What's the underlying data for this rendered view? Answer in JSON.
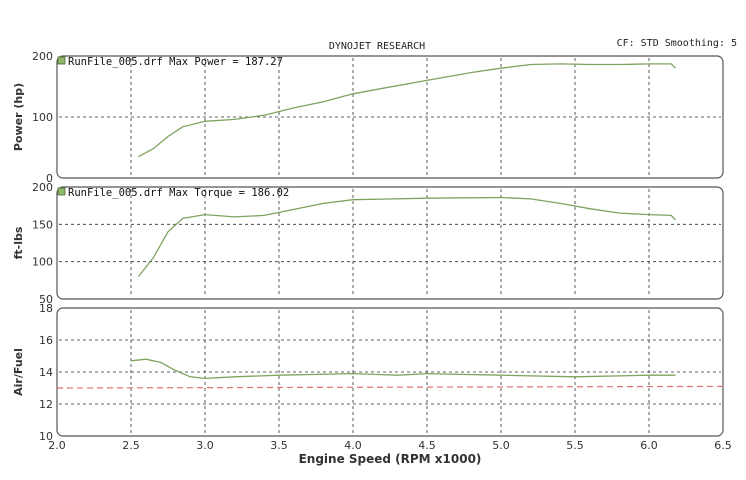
{
  "header": {
    "title": "DYNOJET RESEARCH",
    "settings": "CF: STD   Smoothing: 5"
  },
  "colors": {
    "series": "#7fa35f",
    "target": "#e07070",
    "legend_box": "#8fb86a"
  },
  "chart_data": [
    {
      "type": "line",
      "ylabel": "Power (hp)",
      "ylim": [
        0,
        200
      ],
      "yticks": [
        "0",
        "100",
        "200"
      ],
      "grid": true,
      "legend": "RunFile_005.drf Max Power = 187.27",
      "series": [
        {
          "x": [
            2.55,
            2.65,
            2.75,
            2.85,
            3.0,
            3.2,
            3.4,
            3.6,
            3.8,
            4.0,
            4.2,
            4.5,
            4.8,
            5.0,
            5.2,
            5.4,
            5.6,
            5.8,
            6.0,
            6.15,
            6.18
          ],
          "y": [
            35,
            48,
            68,
            84,
            93,
            96,
            103,
            115,
            125,
            138,
            147,
            160,
            173,
            180,
            186,
            187,
            186,
            186,
            187,
            187,
            180
          ]
        }
      ]
    },
    {
      "type": "line",
      "ylabel": "ft-lbs",
      "ylim": [
        50,
        200
      ],
      "yticks": [
        "50",
        "100",
        "150",
        "200"
      ],
      "grid": true,
      "legend": "RunFile_005.drf Max Torque = 186.02",
      "series": [
        {
          "x": [
            2.55,
            2.65,
            2.75,
            2.85,
            3.0,
            3.2,
            3.4,
            3.6,
            3.8,
            4.0,
            4.5,
            5.0,
            5.2,
            5.4,
            5.6,
            5.8,
            6.0,
            6.15,
            6.18
          ],
          "y": [
            80,
            105,
            140,
            158,
            163,
            160,
            162,
            170,
            178,
            183,
            185,
            186,
            184,
            178,
            171,
            165,
            163,
            162,
            156
          ]
        }
      ]
    },
    {
      "type": "line",
      "ylabel": "Air/Fuel",
      "ylim": [
        10,
        18
      ],
      "yticks": [
        "10",
        "12",
        "14",
        "16",
        "18"
      ],
      "xlabel": "Engine Speed (RPM x1000)",
      "xlim": [
        2.0,
        6.5
      ],
      "xticks": [
        "2.0",
        "2.5",
        "3.0",
        "3.5",
        "4.0",
        "4.5",
        "5.0",
        "5.5",
        "6.0",
        "6.5"
      ],
      "grid": true,
      "series": [
        {
          "x": [
            2.5,
            2.6,
            2.7,
            2.8,
            2.9,
            3.0,
            3.2,
            3.5,
            4.0,
            4.3,
            4.5,
            5.0,
            5.5,
            6.0,
            6.18
          ],
          "y": [
            14.7,
            14.8,
            14.6,
            14.1,
            13.7,
            13.6,
            13.7,
            13.8,
            13.9,
            13.8,
            13.9,
            13.8,
            13.7,
            13.8,
            13.8
          ]
        },
        {
          "x": [
            2.0,
            6.5
          ],
          "y": [
            13.0,
            13.1
          ],
          "style": "dashed"
        }
      ]
    }
  ]
}
